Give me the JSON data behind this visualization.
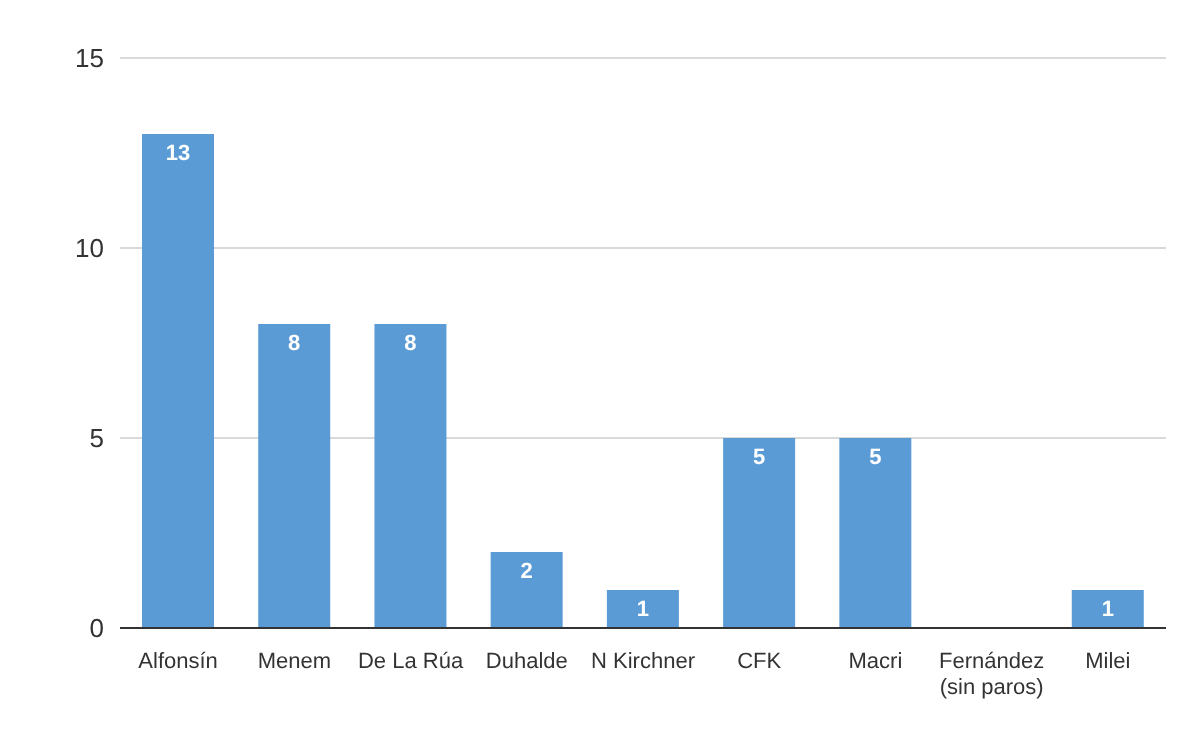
{
  "chart_data": {
    "type": "bar",
    "categories": [
      "Alfonsín",
      "Menem",
      "De La Rúa",
      "Duhalde",
      "N Kirchner",
      "CFK",
      "Macri",
      "Fernández (sin paros)",
      "Milei"
    ],
    "values": [
      13,
      8,
      8,
      2,
      1,
      5,
      5,
      0,
      1
    ],
    "value_labels": [
      "13",
      "8",
      "8",
      "2",
      "1",
      "5",
      "5",
      null,
      "1"
    ],
    "color": "#5b9bd5",
    "ylim": [
      0,
      15
    ],
    "yticks": [
      0,
      5,
      10,
      15
    ],
    "grid": "y"
  }
}
